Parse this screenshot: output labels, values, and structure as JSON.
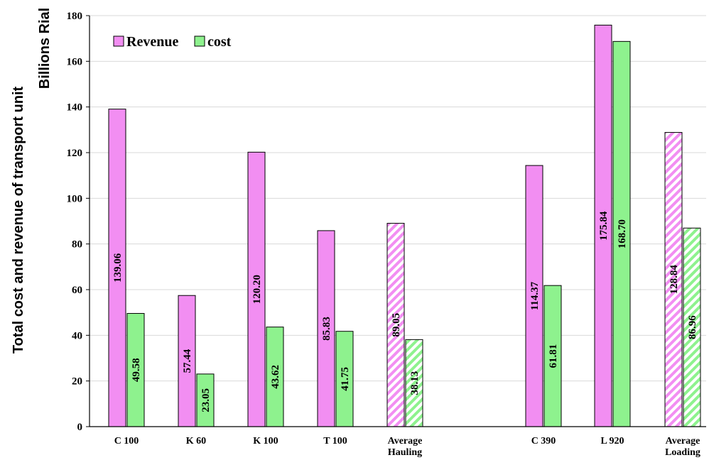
{
  "chart_data": {
    "type": "bar",
    "title": "",
    "ylabel": "Total cost and revenue of transport unit",
    "unit_label": "Billions Rial",
    "ylim": [
      0,
      180
    ],
    "yticks": [
      0,
      20,
      40,
      60,
      80,
      100,
      120,
      140,
      160,
      180
    ],
    "grid": "horizontal",
    "legend_position": "top-left",
    "categories": [
      [
        "C 100"
      ],
      [
        "K 60"
      ],
      [
        "K 100"
      ],
      [
        "T 100"
      ],
      [
        "Average",
        "Hauling"
      ],
      [
        "C 390"
      ],
      [
        "L 920"
      ],
      [
        "Average",
        "Loading"
      ]
    ],
    "hatched_categories": [
      4,
      7
    ],
    "series": [
      {
        "name": "Revenue",
        "color": "#f28ef2",
        "values": [
          139.06,
          57.44,
          120.2,
          85.83,
          89.05,
          114.37,
          175.84,
          128.84
        ],
        "labels": [
          "139.06",
          "57.44",
          "120.20",
          "85.83",
          "89.05",
          "114.37",
          "175.84",
          "128.84"
        ]
      },
      {
        "name": "cost",
        "color": "#8ef28e",
        "values": [
          49.58,
          23.05,
          43.62,
          41.75,
          38.13,
          61.81,
          168.7,
          86.96
        ],
        "labels": [
          "49.58",
          "23.05",
          "43.62",
          "41.75",
          "38.13",
          "61.81",
          "168.70",
          "86.96"
        ]
      }
    ]
  }
}
